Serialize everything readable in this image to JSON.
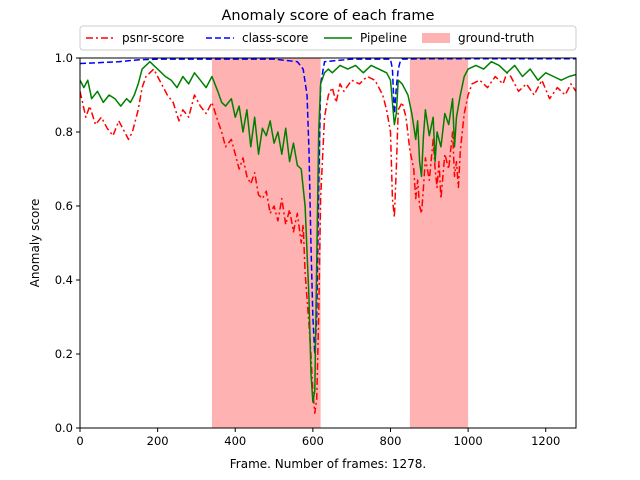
{
  "chart_data": {
    "type": "line",
    "title": "Anomaly score of each frame",
    "xlabel": "Frame. Number of frames: 1278.",
    "ylabel": "Anomaly score",
    "xlim": [
      0,
      1278
    ],
    "ylim": [
      0.0,
      1.0
    ],
    "x_ticks": [
      0,
      200,
      400,
      600,
      800,
      1000,
      1200
    ],
    "x_tick_labels": [
      "0",
      "200",
      "400",
      "600",
      "800",
      "1000",
      "1200"
    ],
    "y_ticks": [
      0.0,
      0.2,
      0.4,
      0.6,
      0.8,
      1.0
    ],
    "y_tick_labels": [
      "0.0",
      "0.2",
      "0.4",
      "0.6",
      "0.8",
      "1.0"
    ],
    "grid": false,
    "legend_position": "top-center",
    "legend": [
      {
        "label": "psnr-score",
        "style": "dashdot",
        "color": "#ff0000"
      },
      {
        "label": "class-score",
        "style": "dashed",
        "color": "#0000ff"
      },
      {
        "label": "Pipeline",
        "style": "solid",
        "color": "#008000"
      },
      {
        "label": "ground-truth",
        "style": "patch",
        "color": "#ff0000"
      }
    ],
    "ground_truth_spans": [
      [
        340,
        620
      ],
      [
        850,
        1000
      ]
    ],
    "series": [
      {
        "name": "psnr-score",
        "color": "#ff0000",
        "dash": "dashdot",
        "x": [
          0,
          15,
          25,
          40,
          55,
          70,
          85,
          100,
          115,
          125,
          135,
          150,
          160,
          170,
          180,
          190,
          200,
          210,
          225,
          240,
          255,
          265,
          280,
          295,
          310,
          325,
          340,
          355,
          365,
          375,
          390,
          400,
          410,
          420,
          430,
          440,
          450,
          460,
          470,
          480,
          490,
          500,
          510,
          520,
          530,
          540,
          550,
          560,
          570,
          575,
          580,
          585,
          590,
          595,
          600,
          605,
          610,
          615,
          620,
          630,
          640,
          650,
          660,
          670,
          680,
          700,
          720,
          740,
          760,
          780,
          790,
          800,
          805,
          810,
          815,
          820,
          830,
          840,
          850,
          860,
          865,
          870,
          875,
          880,
          885,
          890,
          900,
          910,
          915,
          920,
          925,
          930,
          940,
          950,
          960,
          965,
          970,
          975,
          980,
          990,
          1000,
          1010,
          1030,
          1050,
          1070,
          1090,
          1100,
          1110,
          1130,
          1150,
          1170,
          1190,
          1210,
          1230,
          1250,
          1265,
          1278
        ],
        "y": [
          0.91,
          0.84,
          0.87,
          0.82,
          0.84,
          0.81,
          0.79,
          0.83,
          0.8,
          0.78,
          0.8,
          0.86,
          0.92,
          0.95,
          0.96,
          0.97,
          0.95,
          0.93,
          0.9,
          0.88,
          0.83,
          0.86,
          0.84,
          0.9,
          0.87,
          0.85,
          0.88,
          0.83,
          0.8,
          0.76,
          0.78,
          0.74,
          0.7,
          0.73,
          0.68,
          0.66,
          0.69,
          0.63,
          0.62,
          0.64,
          0.58,
          0.6,
          0.56,
          0.62,
          0.55,
          0.59,
          0.53,
          0.58,
          0.5,
          0.55,
          0.42,
          0.35,
          0.28,
          0.2,
          0.1,
          0.04,
          0.08,
          0.3,
          0.62,
          0.84,
          0.9,
          0.92,
          0.88,
          0.93,
          0.91,
          0.94,
          0.93,
          0.95,
          0.94,
          0.9,
          0.86,
          0.8,
          0.62,
          0.57,
          0.7,
          0.86,
          0.88,
          0.84,
          0.75,
          0.7,
          0.62,
          0.67,
          0.6,
          0.58,
          0.65,
          0.73,
          0.67,
          0.78,
          0.7,
          0.65,
          0.72,
          0.62,
          0.74,
          0.7,
          0.8,
          0.68,
          0.72,
          0.65,
          0.75,
          0.85,
          0.9,
          0.93,
          0.94,
          0.92,
          0.95,
          0.93,
          0.96,
          0.95,
          0.91,
          0.93,
          0.9,
          0.94,
          0.89,
          0.92,
          0.9,
          0.93,
          0.91
        ]
      },
      {
        "name": "class-score",
        "color": "#0000ff",
        "dash": "dashed",
        "x": [
          0,
          100,
          150,
          200,
          300,
          400,
          500,
          560,
          575,
          585,
          590,
          595,
          600,
          605,
          610,
          615,
          620,
          630,
          700,
          800,
          805,
          810,
          815,
          820,
          825,
          830,
          900,
          1000,
          1100,
          1200,
          1278
        ],
        "y": [
          0.985,
          0.99,
          0.995,
          0.997,
          0.997,
          0.997,
          0.997,
          0.99,
          0.97,
          0.9,
          0.75,
          0.5,
          0.3,
          0.2,
          0.3,
          0.65,
          0.93,
          0.99,
          0.997,
          0.997,
          0.97,
          0.85,
          0.92,
          0.97,
          0.99,
          0.997,
          0.998,
          0.998,
          0.998,
          0.998,
          0.998
        ]
      },
      {
        "name": "Pipeline",
        "color": "#008000",
        "dash": "solid",
        "x": [
          0,
          10,
          20,
          30,
          45,
          60,
          75,
          90,
          105,
          120,
          130,
          140,
          150,
          160,
          170,
          180,
          190,
          200,
          210,
          220,
          235,
          250,
          265,
          280,
          295,
          310,
          325,
          340,
          355,
          365,
          375,
          390,
          400,
          410,
          420,
          430,
          440,
          450,
          460,
          470,
          480,
          490,
          500,
          510,
          520,
          530,
          540,
          550,
          560,
          570,
          580,
          590,
          595,
          600,
          605,
          610,
          615,
          620,
          630,
          640,
          650,
          670,
          690,
          710,
          730,
          750,
          770,
          790,
          800,
          805,
          810,
          815,
          820,
          830,
          845,
          855,
          865,
          870,
          875,
          880,
          885,
          890,
          900,
          910,
          915,
          920,
          930,
          940,
          950,
          960,
          965,
          970,
          980,
          990,
          1000,
          1020,
          1040,
          1060,
          1080,
          1100,
          1120,
          1140,
          1160,
          1180,
          1200,
          1220,
          1240,
          1260,
          1278
        ],
        "y": [
          0.94,
          0.92,
          0.94,
          0.89,
          0.91,
          0.88,
          0.9,
          0.89,
          0.87,
          0.89,
          0.88,
          0.9,
          0.93,
          0.97,
          0.98,
          0.99,
          0.98,
          0.97,
          0.96,
          0.95,
          0.94,
          0.92,
          0.95,
          0.93,
          0.96,
          0.94,
          0.92,
          0.95,
          0.91,
          0.88,
          0.87,
          0.89,
          0.84,
          0.87,
          0.8,
          0.86,
          0.76,
          0.84,
          0.74,
          0.81,
          0.79,
          0.83,
          0.77,
          0.8,
          0.74,
          0.81,
          0.72,
          0.77,
          0.71,
          0.7,
          0.6,
          0.35,
          0.15,
          0.07,
          0.1,
          0.45,
          0.8,
          0.93,
          0.96,
          0.97,
          0.96,
          0.98,
          0.97,
          0.98,
          0.96,
          0.98,
          0.97,
          0.96,
          0.94,
          0.88,
          0.82,
          0.85,
          0.94,
          0.93,
          0.9,
          0.85,
          0.78,
          0.83,
          0.72,
          0.68,
          0.79,
          0.86,
          0.79,
          0.84,
          0.72,
          0.8,
          0.76,
          0.85,
          0.82,
          0.89,
          0.76,
          0.84,
          0.9,
          0.95,
          0.97,
          0.98,
          0.97,
          0.99,
          0.98,
          0.96,
          0.98,
          0.95,
          0.97,
          0.94,
          0.96,
          0.95,
          0.94,
          0.95,
          0.955
        ]
      }
    ]
  }
}
